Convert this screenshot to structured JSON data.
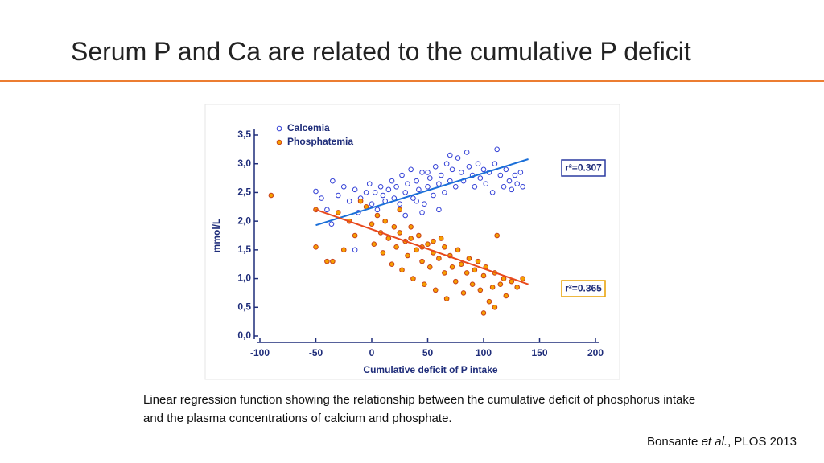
{
  "header": {
    "title": "Serum P and Ca are related to the cumulative P deficit"
  },
  "chart_data": {
    "type": "scatter",
    "x_label": "Cumulative deficit of P intake",
    "y_label": "mmol/L",
    "xlim": [
      -100,
      200
    ],
    "xticks": [
      -100,
      -50,
      0,
      50,
      100,
      150,
      200
    ],
    "ylim": [
      0,
      3.5
    ],
    "yticks": [
      {
        "value": 0,
        "label": "0,0"
      },
      {
        "value": 0.5,
        "label": "0,5"
      },
      {
        "value": 1,
        "label": "1,0"
      },
      {
        "value": 1.5,
        "label": "1,5"
      },
      {
        "value": 2,
        "label": "2,0"
      },
      {
        "value": 2.5,
        "label": "2,5"
      },
      {
        "value": 3,
        "label": "3,0"
      },
      {
        "value": 3.5,
        "label": "3,5"
      }
    ],
    "legend": "upper left",
    "series": [
      {
        "name": "Calcemia",
        "color": "#3340d6",
        "marker": "open",
        "x": [
          -50,
          -45,
          -40,
          -35,
          -30,
          -25,
          -20,
          -15,
          -12,
          -10,
          -5,
          -2,
          0,
          3,
          5,
          8,
          10,
          12,
          15,
          18,
          20,
          22,
          25,
          27,
          30,
          32,
          35,
          37,
          40,
          42,
          45,
          47,
          50,
          52,
          55,
          57,
          60,
          62,
          65,
          67,
          70,
          72,
          75,
          77,
          80,
          82,
          85,
          87,
          90,
          92,
          95,
          97,
          100,
          102,
          105,
          108,
          110,
          112,
          115,
          118,
          120,
          123,
          125,
          128,
          130,
          133,
          135,
          -36,
          -15,
          30,
          45,
          60,
          70,
          40,
          50
        ],
        "values": [
          2.52,
          2.4,
          2.2,
          2.7,
          2.45,
          2.6,
          2.35,
          2.55,
          2.15,
          2.4,
          2.5,
          2.65,
          2.3,
          2.5,
          2.2,
          2.6,
          2.45,
          2.35,
          2.55,
          2.7,
          2.4,
          2.6,
          2.3,
          2.8,
          2.5,
          2.65,
          2.9,
          2.4,
          2.7,
          2.55,
          2.85,
          2.3,
          2.6,
          2.75,
          2.45,
          2.95,
          2.65,
          2.8,
          2.5,
          3.0,
          2.7,
          2.9,
          2.6,
          3.1,
          2.85,
          2.7,
          3.2,
          2.95,
          2.8,
          2.6,
          3.0,
          2.75,
          2.9,
          2.65,
          2.85,
          2.5,
          3.0,
          3.25,
          2.8,
          2.6,
          2.9,
          2.7,
          2.55,
          2.8,
          2.65,
          2.85,
          2.6,
          1.95,
          1.5,
          2.1,
          2.15,
          2.2,
          3.15,
          2.35,
          2.85
        ],
        "fit": {
          "color": "#1a6fd8",
          "x": [
            -50,
            140
          ],
          "values": [
            1.93,
            3.08
          ]
        },
        "annotation": "r²=0.307"
      },
      {
        "name": "Phosphatemia",
        "color": "#f7a000",
        "edgecolor": "#c8401a",
        "marker": "filled",
        "x": [
          -90,
          -50,
          -50,
          -40,
          -35,
          -30,
          -25,
          -20,
          -15,
          -10,
          -5,
          0,
          2,
          5,
          8,
          10,
          12,
          15,
          18,
          20,
          22,
          25,
          27,
          30,
          32,
          35,
          37,
          40,
          42,
          45,
          47,
          50,
          52,
          55,
          57,
          60,
          62,
          65,
          67,
          70,
          72,
          75,
          77,
          80,
          82,
          85,
          87,
          90,
          92,
          95,
          97,
          100,
          102,
          105,
          108,
          110,
          112,
          115,
          118,
          120,
          125,
          130,
          135,
          100,
          110,
          55,
          45,
          65,
          35,
          25
        ],
        "values": [
          2.45,
          2.2,
          1.55,
          1.3,
          1.3,
          2.15,
          1.5,
          2.0,
          1.75,
          2.35,
          2.25,
          1.95,
          1.6,
          2.1,
          1.8,
          1.45,
          2.0,
          1.7,
          1.25,
          1.9,
          1.55,
          1.8,
          1.15,
          1.65,
          1.4,
          1.9,
          1.0,
          1.5,
          1.75,
          1.3,
          0.9,
          1.6,
          1.2,
          1.45,
          0.8,
          1.35,
          1.7,
          1.1,
          0.65,
          1.4,
          1.2,
          0.95,
          1.5,
          1.25,
          0.75,
          1.1,
          1.35,
          0.9,
          1.15,
          1.3,
          0.8,
          1.05,
          1.2,
          0.6,
          0.85,
          1.1,
          1.75,
          0.9,
          1.0,
          0.7,
          0.95,
          0.85,
          1.0,
          0.4,
          0.5,
          1.65,
          1.55,
          1.55,
          1.7,
          2.2
        ],
        "fit": {
          "color": "#e8491d",
          "x": [
            -50,
            140
          ],
          "values": [
            2.2,
            0.9
          ]
        },
        "annotation": "r²=0.365"
      }
    ]
  },
  "caption": "Linear regression function showing the relationship between the cumulative deficit of phosphorus intake and the plasma concentrations of calcium and phosphate.",
  "citation": {
    "author": "Bonsante ",
    "etal": "et al.",
    "rest": ", PLOS 2013"
  }
}
